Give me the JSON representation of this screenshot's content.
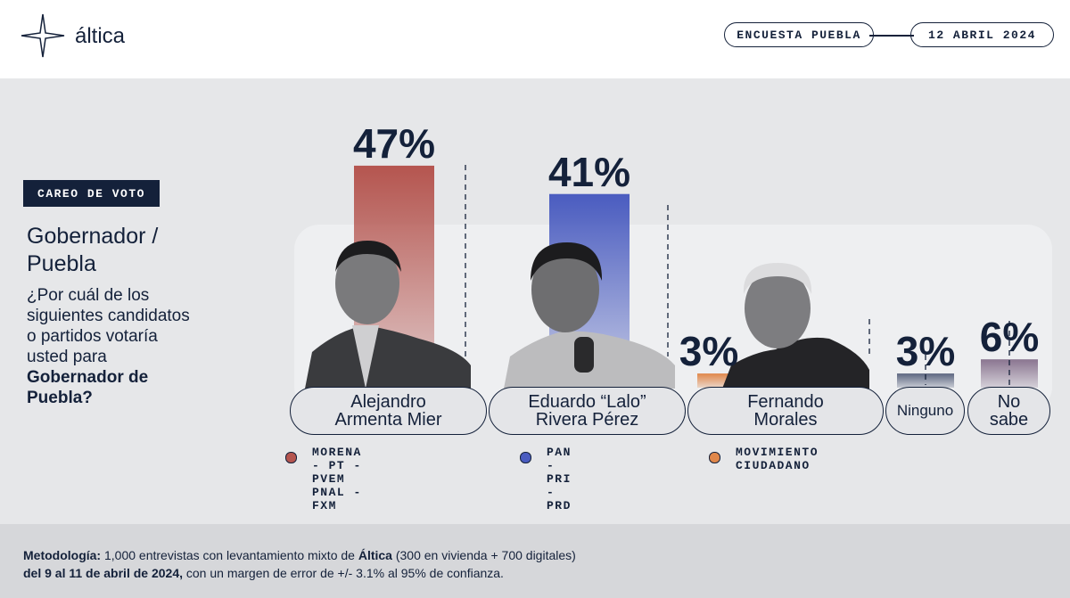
{
  "header": {
    "brand": "áltica",
    "tag": "ENCUESTA PUEBLA",
    "date": "12 ABRIL 2024"
  },
  "sidebar": {
    "badge": "CAREO DE VOTO",
    "title": "Gobernador / Puebla",
    "question": "¿Por cuál de los siguientes candidatos o partidos votaría usted para",
    "question_bold": "Gobernador de Puebla?"
  },
  "chart_data": {
    "type": "bar",
    "categories": [
      "Alejandro Armenta Mier",
      "Eduardo “Lalo” Rivera Pérez",
      "Fernando Morales",
      "Ninguno",
      "No sabe"
    ],
    "values": [
      47,
      41,
      3,
      3,
      6
    ],
    "value_labels": [
      "47%",
      "41%",
      "3%",
      "3%",
      "6%"
    ],
    "colors": [
      "#b5554f",
      "#4a5cc0",
      "#e0874a",
      "#5c6680",
      "#8a7590"
    ],
    "parties": [
      {
        "lines": [
          "MORENA - PT - PVEM",
          "PNAL - FXM"
        ],
        "color": "#b5554f"
      },
      {
        "lines": [
          "PAN - PRI - PRD"
        ],
        "color": "#4a5cc0"
      },
      {
        "lines": [
          "MOVIMIENTO CIUDADANO"
        ],
        "color": "#e0874a"
      }
    ]
  },
  "footer": {
    "label": "Metodología:",
    "text1": " 1,000 entrevistas con levantamiento mixto de ",
    "brand": "Áltica",
    "text2": " (300 en vivienda + 700 digitales)",
    "dates": "del 9 al 11 de abril de 2024,",
    "text3": " con un margen de error de +/- 3.1% al 95% de confianza."
  }
}
